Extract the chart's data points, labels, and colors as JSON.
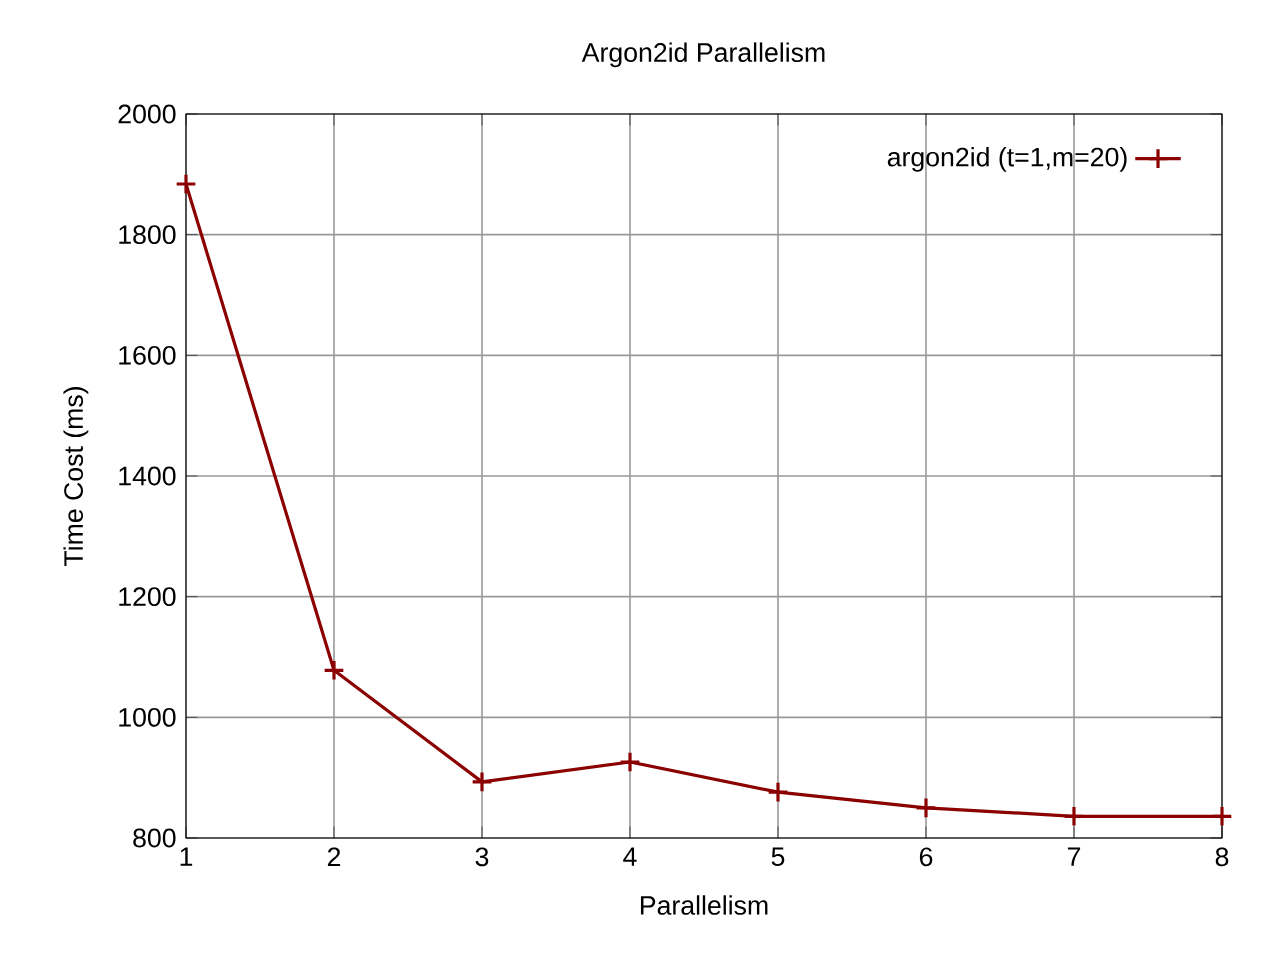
{
  "chart_data": {
    "type": "line",
    "title": "Argon2id Parallelism",
    "xlabel": "Parallelism",
    "ylabel": "Time Cost (ms)",
    "x": [
      1,
      2,
      3,
      4,
      5,
      6,
      7,
      8
    ],
    "series": [
      {
        "name": "argon2id (t=1,m=20)",
        "color": "#8b0000",
        "values": [
          1884,
          1078,
          893,
          926,
          876,
          850,
          836,
          836
        ]
      }
    ],
    "xlim": [
      1,
      8
    ],
    "xticks": [
      1,
      2,
      3,
      4,
      5,
      6,
      7,
      8
    ],
    "ylim": [
      800,
      2000
    ],
    "yticks": [
      800,
      1000,
      1200,
      1400,
      1600,
      1800,
      2000
    ],
    "grid": true,
    "legend": "top right",
    "marker": "cross",
    "line_style": "solid"
  }
}
